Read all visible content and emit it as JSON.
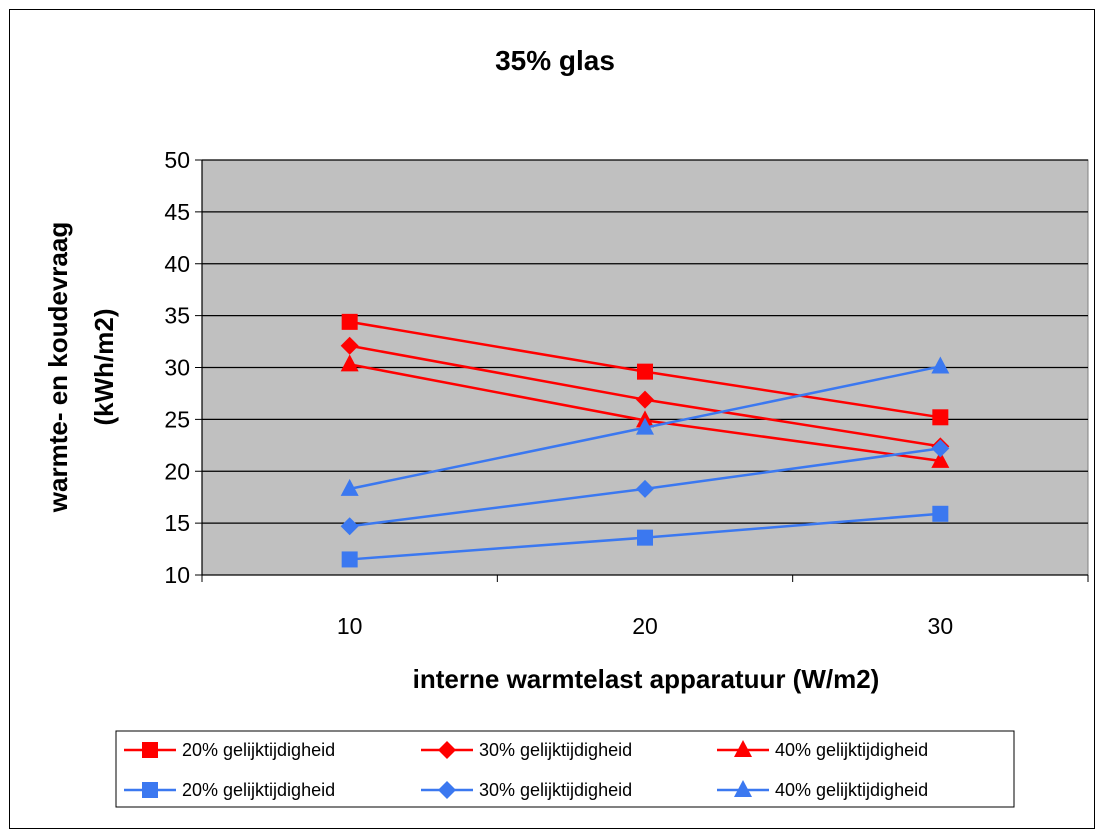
{
  "chart_data": {
    "type": "line",
    "title": "35% glas",
    "xlabel": "interne warmtelast apparatuur (W/m2)",
    "ylabel_line1": "warmte- en koudevraag",
    "ylabel_line2": "(kWh/m2)",
    "categories": [
      "10",
      "20",
      "30"
    ],
    "yticks": [
      "10",
      "15",
      "20",
      "25",
      "30",
      "35",
      "40",
      "45",
      "50"
    ],
    "ylim": [
      10,
      50
    ],
    "grid": true,
    "plot_background": "#c0c0c0",
    "legend_position": "bottom",
    "series": [
      {
        "name": "20% gelijktijdigheid",
        "color": "#ff0000",
        "marker": "square",
        "values": [
          34.4,
          29.6,
          25.2
        ]
      },
      {
        "name": "30% gelijktijdigheid",
        "color": "#ff0000",
        "marker": "diamond",
        "values": [
          32.1,
          26.9,
          22.4
        ]
      },
      {
        "name": "40% gelijktijdigheid",
        "color": "#ff0000",
        "marker": "triangle",
        "values": [
          30.3,
          24.9,
          21.0
        ]
      },
      {
        "name": "20% gelijktijdigheid",
        "color": "#3b78f0",
        "marker": "square",
        "values": [
          11.5,
          13.6,
          15.9
        ]
      },
      {
        "name": "30% gelijktijdigheid",
        "color": "#3b78f0",
        "marker": "diamond",
        "values": [
          14.7,
          18.3,
          22.2
        ]
      },
      {
        "name": "40% gelijktijdigheid",
        "color": "#3b78f0",
        "marker": "triangle",
        "values": [
          18.3,
          24.2,
          30.1
        ]
      }
    ]
  }
}
